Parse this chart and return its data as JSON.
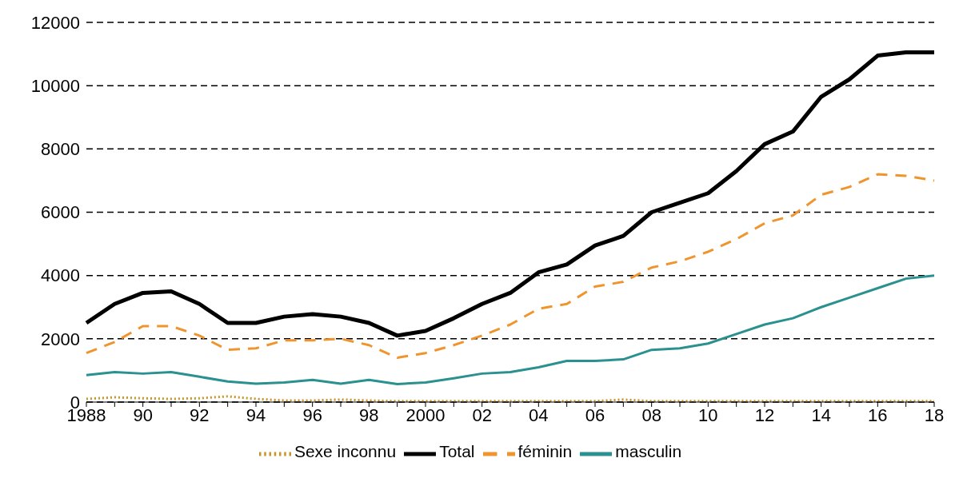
{
  "chart_data": {
    "type": "line",
    "categories": [
      "1988",
      null,
      "90",
      null,
      "92",
      null,
      "94",
      null,
      "96",
      null,
      "98",
      null,
      "2000",
      null,
      "02",
      null,
      "04",
      null,
      "06",
      null,
      "08",
      null,
      "10",
      null,
      "12",
      null,
      "14",
      null,
      "16",
      null,
      "18"
    ],
    "series": [
      {
        "name": "Total",
        "color": "#000000",
        "line_style": "solid",
        "values": [
          2500,
          3100,
          3450,
          3500,
          3100,
          2500,
          2500,
          2700,
          2780,
          2700,
          2500,
          2100,
          2250,
          2650,
          3100,
          3450,
          4100,
          4350,
          4950,
          5250,
          6000,
          6300,
          6600,
          7300,
          8150,
          8550,
          9650,
          10200,
          10950,
          11050,
          11050
        ]
      },
      {
        "name": "masculin",
        "color": "#2a9090",
        "line_style": "solid",
        "values": [
          850,
          950,
          900,
          950,
          800,
          650,
          580,
          620,
          700,
          580,
          700,
          570,
          620,
          750,
          900,
          950,
          1100,
          1300,
          1300,
          1350,
          1650,
          1700,
          1850,
          2150,
          2450,
          2650,
          3000,
          3300,
          3600,
          3900,
          4000
        ]
      },
      {
        "name": "féminin",
        "color": "#f0952e",
        "line_style": "dashed",
        "values": [
          1550,
          1900,
          2400,
          2400,
          2100,
          1650,
          1700,
          1950,
          1950,
          2000,
          1800,
          1400,
          1550,
          1800,
          2100,
          2450,
          2950,
          3100,
          3650,
          3800,
          4250,
          4450,
          4750,
          5150,
          5650,
          5900,
          6550,
          6800,
          7200,
          7150,
          7000
        ]
      },
      {
        "name": "Sexe inconnu",
        "color": "#c8952a",
        "line_style": "dotted",
        "values": [
          100,
          150,
          120,
          100,
          120,
          180,
          100,
          50,
          50,
          80,
          50,
          30,
          30,
          30,
          30,
          30,
          30,
          30,
          30,
          80,
          30,
          30,
          30,
          30,
          30,
          30,
          30,
          30,
          30,
          30,
          30
        ]
      }
    ],
    "ylim": [
      0,
      12000
    ],
    "yticks": [
      0,
      2000,
      4000,
      6000,
      8000,
      10000,
      12000
    ],
    "grid": "y",
    "legend": "bottom",
    "marker": "none"
  }
}
